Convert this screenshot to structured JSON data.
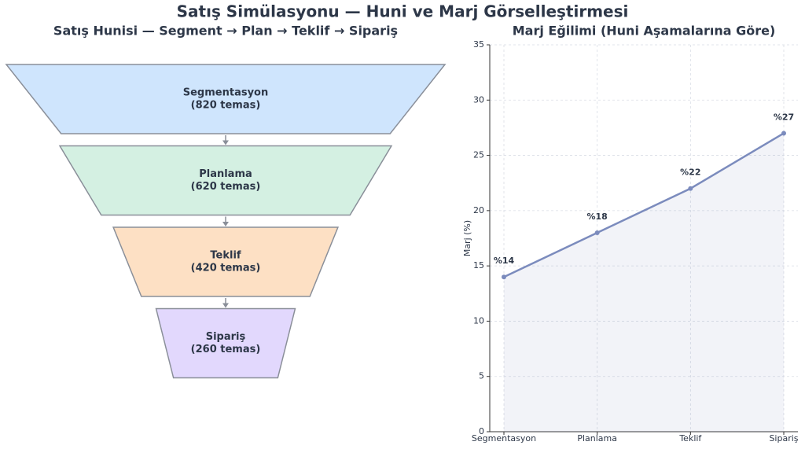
{
  "title": "Satış Simülasyonu — Huni ve Marj Görselleştirmesi",
  "chart_data": [
    {
      "type": "funnel",
      "title": "Satış Hunisi — Segment → Plan → Teklif → Sipariş",
      "categories": [
        "Segmentasyon",
        "Planlama",
        "Teklif",
        "Sipariş"
      ],
      "values": [
        820,
        620,
        420,
        260
      ],
      "value_labels": [
        "(820 temas)",
        "(620 temas)",
        "(420 temas)",
        "(260 temas)"
      ],
      "colors": [
        "#cfe5fd",
        "#d4f0e2",
        "#fde0c4",
        "#e2d8fd"
      ]
    },
    {
      "type": "line",
      "title": "Marj Eğilimi (Huni Aşamalarına Göre)",
      "categories": [
        "Segmentasyon",
        "Planlama",
        "Teklif",
        "Sipariş"
      ],
      "values": [
        14,
        18,
        22,
        27
      ],
      "value_labels": [
        "%14",
        "%18",
        "%22",
        "%27"
      ],
      "color": "#7b8bbd",
      "ylabel": "Marj (%)",
      "ylim": [
        0,
        35
      ],
      "yticks": [
        0,
        5,
        10,
        15,
        20,
        25,
        30,
        35
      ],
      "grid": true
    }
  ]
}
